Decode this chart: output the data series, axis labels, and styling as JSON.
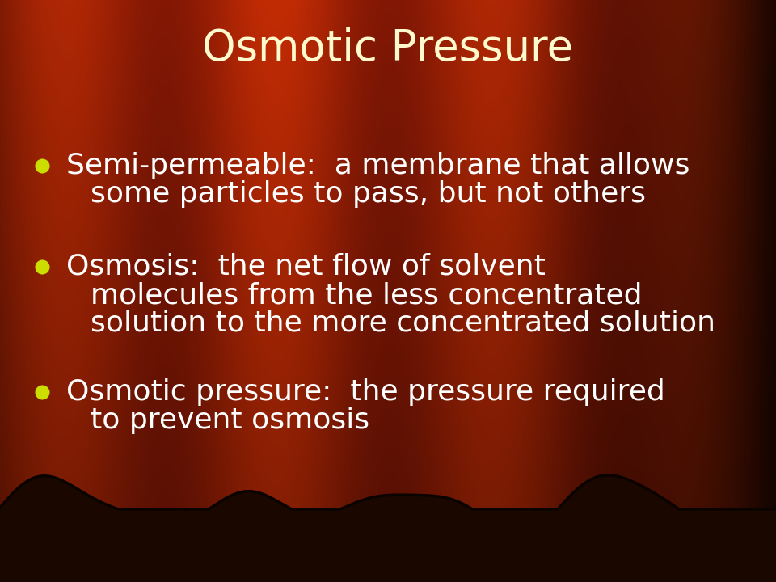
{
  "title": "Osmotic Pressure",
  "title_color": "#FFFACD",
  "title_fontsize": 38,
  "bullet_color": "#CCDD00",
  "text_color": "#FFFFFF",
  "text_fontsize": 26,
  "bullets": [
    {
      "lines": [
        "Semi-permeable:  a membrane that allows",
        "some particles to pass, but not others"
      ]
    },
    {
      "lines": [
        "Osmosis:  the net flow of solvent",
        "molecules from the less concentrated",
        "solution to the more concentrated solution"
      ]
    },
    {
      "lines": [
        "Osmotic pressure:  the pressure required",
        "to prevent osmosis"
      ]
    }
  ],
  "wave_color": "#1a0800",
  "wave_outline": "#0a0300"
}
